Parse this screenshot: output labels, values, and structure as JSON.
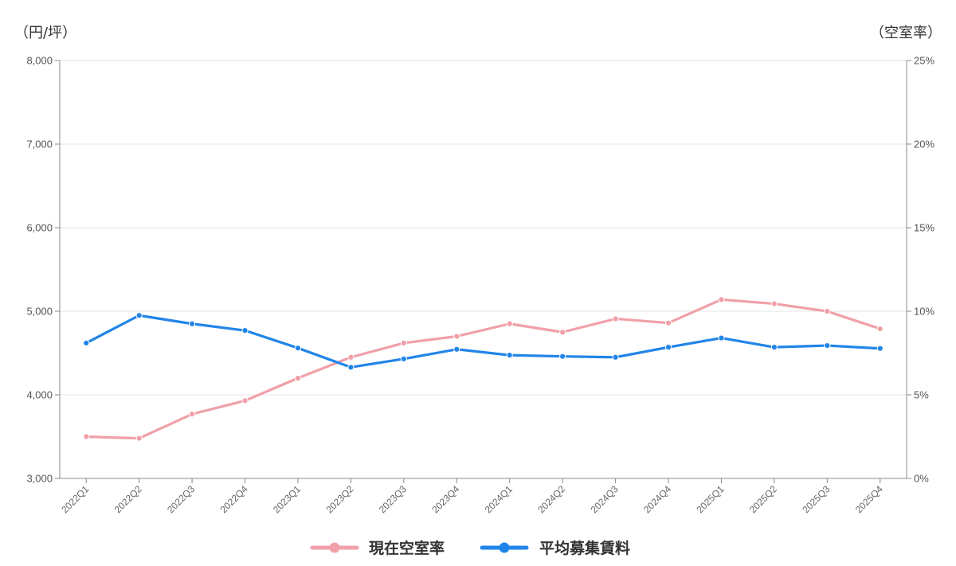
{
  "chart_data": {
    "type": "line",
    "left_axis_unit": "（円/坪）",
    "right_axis_unit": "（空室率）",
    "categories": [
      "2022Q1",
      "2022Q2",
      "2022Q3",
      "2022Q4",
      "2023Q1",
      "2023Q2",
      "2023Q3",
      "2023Q4",
      "2024Q1",
      "2024Q2",
      "2024Q3",
      "2024Q4",
      "2025Q1",
      "2025Q2",
      "2025Q3",
      "2025Q4"
    ],
    "y_left": {
      "min": 3000,
      "max": 8000,
      "ticks": [
        3000,
        4000,
        5000,
        6000,
        7000,
        8000
      ],
      "tick_labels": [
        "3,000",
        "4,000",
        "5,000",
        "6,000",
        "7,000",
        "8,000"
      ]
    },
    "y_right": {
      "min": 0,
      "max": 25,
      "ticks": [
        0,
        5,
        10,
        15,
        20,
        25
      ],
      "tick_labels": [
        "0%",
        "5%",
        "10%",
        "15%",
        "20%",
        "25%"
      ]
    },
    "series": [
      {
        "name": "現在空室率",
        "axis": "right",
        "color": "#f0a0a8",
        "values": [
          2.5,
          2.4,
          3.85,
          4.65,
          6.0,
          7.25,
          8.1,
          8.5,
          9.25,
          8.75,
          9.55,
          9.3,
          10.7,
          10.45,
          10.0,
          8.95
        ]
      },
      {
        "name": "平均募集賃料",
        "axis": "left",
        "color": "#2185e8",
        "values": [
          4620,
          4950,
          4850,
          4770,
          4560,
          4330,
          4430,
          4545,
          4475,
          4460,
          4450,
          4570,
          4680,
          4570,
          4590,
          4555
        ]
      }
    ],
    "grid": true,
    "legend_position": "bottom-center"
  }
}
